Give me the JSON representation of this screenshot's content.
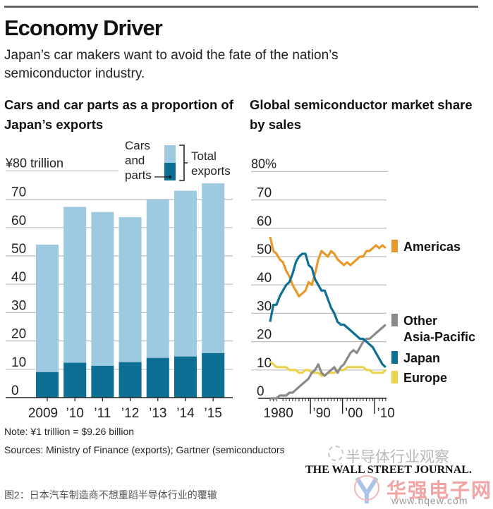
{
  "header": {
    "title": "Economy Driver",
    "subtitle": "Japan’s car makers want to avoid the fate of the nation’s semiconductor industry."
  },
  "colors": {
    "total_exports": "#9ecae1",
    "cars_parts": "#0e6f94",
    "americas": "#e8992b",
    "japan": "#0e6f94",
    "other_asia": "#8a8a8a",
    "europe": "#ecd24a",
    "grid": "#bdbdbd"
  },
  "chart_data": [
    {
      "type": "bar",
      "title": "Cars and car parts as a proportion of Japan’s exports",
      "ylabel": "¥80 trillion",
      "ylim": [
        0,
        80
      ],
      "yticks": [
        0,
        10,
        20,
        30,
        40,
        50,
        60,
        70
      ],
      "ytick_labels": [
        "0",
        "10",
        "20",
        "30",
        "40",
        "50",
        "60",
        "70"
      ],
      "top_tick_label": "¥80 trillion",
      "grid": true,
      "categories": [
        "2009",
        "’10",
        "’11",
        "’12",
        "’13",
        "’14",
        "’15"
      ],
      "series": [
        {
          "name": "Total exports",
          "values": [
            54,
            67.3,
            65.5,
            63.7,
            69.8,
            73,
            75.6
          ]
        },
        {
          "name": "Cars and parts",
          "values": [
            9,
            12.3,
            11.2,
            12.5,
            14,
            14.5,
            15.7
          ]
        }
      ],
      "legend": {
        "cars_label_lines": [
          "Cars",
          "and",
          "parts"
        ],
        "total_label_lines": [
          "Total",
          "exports"
        ],
        "placement": "top-right"
      }
    },
    {
      "type": "line",
      "title": "Global semiconductor market share by sales",
      "ylim": [
        0,
        80
      ],
      "yticks": [
        0,
        10,
        20,
        30,
        40,
        50,
        60,
        70
      ],
      "ytick_labels": [
        "0",
        "10",
        "20",
        "30",
        "40",
        "50",
        "60",
        "70"
      ],
      "top_tick_label": "80%",
      "xlim": [
        1977,
        2013
      ],
      "xticks": [
        1980,
        1990,
        2000,
        2010
      ],
      "xtick_labels": [
        "1980",
        "’90",
        "’00",
        "’10"
      ],
      "grid": true,
      "x": [
        1977,
        1978,
        1979,
        1980,
        1981,
        1982,
        1983,
        1984,
        1985,
        1986,
        1987,
        1988,
        1989,
        1990,
        1991,
        1992,
        1993,
        1994,
        1995,
        1996,
        1997,
        1998,
        1999,
        2000,
        2001,
        2002,
        2003,
        2004,
        2005,
        2006,
        2007,
        2008,
        2009,
        2010,
        2011,
        2012,
        2013
      ],
      "series": [
        {
          "name": "Americas",
          "values": [
            57,
            52,
            51,
            49,
            48,
            45,
            43,
            40,
            38,
            36,
            37,
            38,
            41,
            40,
            44,
            49,
            52,
            51,
            50,
            52,
            51,
            49,
            48,
            47,
            48,
            47,
            48,
            49,
            50,
            50,
            52,
            52,
            53,
            54,
            53,
            54,
            53
          ]
        },
        {
          "name": "Japan",
          "values": [
            27,
            33,
            33,
            36,
            38,
            40,
            41,
            44,
            48,
            50,
            51,
            51,
            47,
            46,
            42,
            40,
            38,
            38,
            35,
            32,
            30,
            27,
            26,
            26,
            25,
            24,
            23,
            22,
            21,
            21,
            20,
            19,
            18,
            16,
            14,
            12,
            11
          ]
        },
        {
          "name": "Other Asia-Pacific",
          "values": [
            0,
            0,
            0,
            1,
            1,
            1,
            2,
            2,
            3,
            4,
            5,
            6,
            7,
            9,
            10,
            12,
            9,
            8,
            9,
            10,
            11,
            9,
            11,
            12,
            14,
            16,
            17,
            16,
            18,
            20,
            21,
            21,
            22,
            23,
            24,
            25,
            26
          ]
        },
        {
          "name": "Europe",
          "values": [
            13,
            12,
            11,
            11,
            11,
            11,
            10,
            10,
            10,
            9,
            9,
            10,
            10,
            9,
            9,
            9,
            8,
            8,
            9,
            9,
            9,
            10,
            10,
            10,
            11,
            11,
            11,
            11,
            11,
            11,
            10,
            10,
            9,
            9,
            9,
            9,
            10
          ]
        }
      ],
      "legend": {
        "placement": "right",
        "items": [
          {
            "label_lines": [
              "Americas"
            ],
            "color_key": "americas"
          },
          {
            "label_lines": [
              "Other",
              "Asia-Pacific"
            ],
            "color_key": "other_asia"
          },
          {
            "label_lines": [
              "Japan"
            ],
            "color_key": "japan"
          },
          {
            "label_lines": [
              "Europe"
            ],
            "color_key": "europe"
          }
        ]
      }
    }
  ],
  "footer": {
    "note": "Note: ¥1 trillion = $9.26 billion",
    "sources": "Sources: Ministry of Finance (exports); Gartner (semiconductors",
    "publisher": "THE WALL STREET JOURNAL.",
    "caption": "图2：日本汽车制造商不想重蹈半导体行业的覆辙",
    "watermark_1": "半导体行业观察",
    "watermark_2": "华强电子网",
    "watermark_3": "www.hqew.com"
  }
}
